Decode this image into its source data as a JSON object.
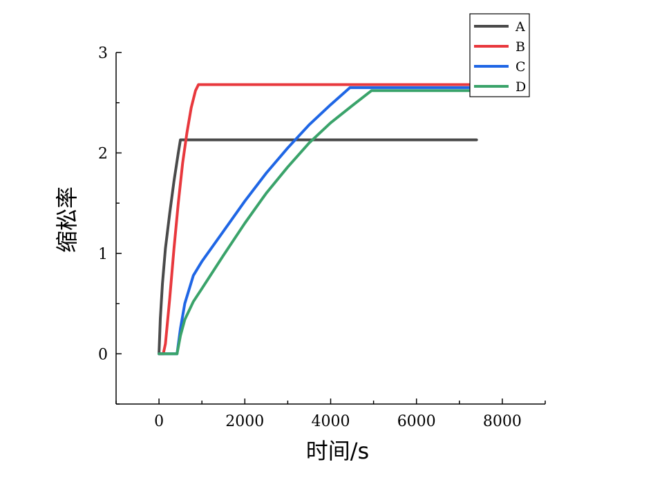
{
  "chart_data": {
    "type": "line",
    "title": "",
    "xlabel": "时间/s",
    "ylabel": "缩松率",
    "xlim": [
      -1000,
      9000
    ],
    "ylim": [
      -0.5,
      3.0
    ],
    "xticks": [
      0,
      2000,
      4000,
      6000,
      8000
    ],
    "xtick_labels": [
      "0",
      "2000",
      "4000",
      "6000",
      "8000"
    ],
    "yticks": [
      0,
      1,
      2,
      3
    ],
    "ytick_labels": [
      "0",
      "1",
      "2",
      "3"
    ],
    "grid": false,
    "legend": "top-right",
    "series": [
      {
        "name": "A",
        "color": "#4a4a4a",
        "x": [
          0,
          30,
          80,
          150,
          250,
          350,
          450,
          500,
          540,
          1000,
          3000,
          5000,
          7400
        ],
        "y": [
          0,
          0.35,
          0.7,
          1.05,
          1.4,
          1.72,
          2.0,
          2.13,
          2.13,
          2.13,
          2.13,
          2.13,
          2.13
        ]
      },
      {
        "name": "B",
        "color": "#e8383d",
        "x": [
          0,
          100,
          150,
          250,
          350,
          450,
          550,
          650,
          750,
          850,
          920,
          2000,
          4000,
          6000,
          7400
        ],
        "y": [
          0,
          0,
          0.1,
          0.55,
          1.05,
          1.5,
          1.9,
          2.2,
          2.45,
          2.62,
          2.68,
          2.68,
          2.68,
          2.68,
          2.68
        ]
      },
      {
        "name": "C",
        "color": "#1f66e5",
        "x": [
          0,
          420,
          500,
          600,
          800,
          1000,
          1500,
          2000,
          2500,
          3000,
          3500,
          4000,
          4450,
          5000,
          6000,
          7400
        ],
        "y": [
          0,
          0,
          0.25,
          0.5,
          0.78,
          0.92,
          1.22,
          1.52,
          1.8,
          2.05,
          2.28,
          2.48,
          2.65,
          2.65,
          2.65,
          2.65
        ]
      },
      {
        "name": "D",
        "color": "#3aa36a",
        "x": [
          0,
          420,
          500,
          600,
          800,
          1000,
          1500,
          2000,
          2500,
          3000,
          3500,
          4000,
          4500,
          4950,
          5500,
          6500,
          7400
        ],
        "y": [
          0,
          0,
          0.18,
          0.34,
          0.52,
          0.65,
          0.98,
          1.3,
          1.6,
          1.86,
          2.1,
          2.3,
          2.47,
          2.62,
          2.62,
          2.62,
          2.62
        ]
      }
    ]
  }
}
